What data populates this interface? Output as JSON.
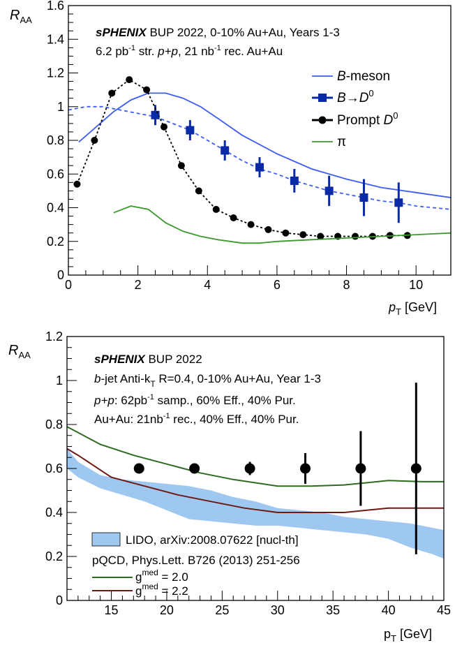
{
  "chart_data": [
    {
      "type": "line",
      "xlabel": "p_T [GeV]",
      "ylabel": "R_AA",
      "xlim": [
        0,
        11
      ],
      "ylim": [
        0,
        1.6
      ],
      "xticks": [
        0,
        2,
        4,
        6,
        8,
        10
      ],
      "yticks": [
        0,
        0.2,
        0.4,
        0.6,
        0.8,
        1,
        1.2,
        1.4,
        1.6
      ],
      "annotations": [
        "sPHENIX BUP 2022, 0-10% Au+Au, Years 1-3",
        "6.2 pb⁻¹ str. p+p, 21 nb⁻¹ rec. Au+Au"
      ],
      "legend_position": "top-right",
      "series": [
        {
          "name": "B-meson",
          "kind": "line",
          "color": "#3d5cf5",
          "x": [
            0.3,
            0.8,
            1.3,
            1.8,
            2.3,
            2.8,
            3.3,
            3.8,
            4.3,
            5,
            6,
            7,
            8,
            9,
            10,
            11
          ],
          "y": [
            0.79,
            0.88,
            0.97,
            1.04,
            1.08,
            1.08,
            1.05,
            1.0,
            0.93,
            0.83,
            0.72,
            0.63,
            0.57,
            0.52,
            0.49,
            0.46
          ]
        },
        {
          "name": "B→D⁰ (dashed)",
          "kind": "line",
          "color": "#3d5cf5",
          "x": [
            0,
            0.5,
            1,
            1.5,
            2,
            2.5,
            3,
            3.5,
            4,
            4.5,
            5,
            5.5,
            6,
            6.5,
            7,
            7.5,
            8,
            8.5,
            9,
            9.5,
            10,
            10.5,
            11
          ],
          "y": [
            0.98,
            1.0,
            1.0,
            0.98,
            0.96,
            0.94,
            0.9,
            0.86,
            0.8,
            0.74,
            0.68,
            0.63,
            0.6,
            0.56,
            0.53,
            0.5,
            0.48,
            0.46,
            0.44,
            0.43,
            0.41,
            0.4,
            0.39
          ]
        },
        {
          "name": "B→D⁰",
          "kind": "points",
          "color": "#0b2aa8",
          "x": [
            2.5,
            3.5,
            4.5,
            5.5,
            6.5,
            7.5,
            8.5,
            9.5
          ],
          "y": [
            0.95,
            0.86,
            0.74,
            0.64,
            0.56,
            0.5,
            0.46,
            0.43
          ],
          "err": [
            0.06,
            0.06,
            0.06,
            0.06,
            0.07,
            0.09,
            0.11,
            0.12
          ]
        },
        {
          "name": "Prompt D⁰",
          "kind": "points_dashed",
          "color": "#000000",
          "x": [
            0.25,
            0.75,
            1.25,
            1.75,
            2.25,
            2.75,
            3.25,
            3.75,
            4.25,
            4.75,
            5.25,
            5.75,
            6.25,
            6.75,
            7.25,
            7.75,
            8.25,
            8.75,
            9.25,
            9.75
          ],
          "y": [
            0.54,
            0.8,
            1.08,
            1.16,
            1.1,
            0.88,
            0.65,
            0.5,
            0.39,
            0.34,
            0.3,
            0.27,
            0.25,
            0.24,
            0.23,
            0.23,
            0.23,
            0.23,
            0.235,
            0.235
          ]
        },
        {
          "name": "π",
          "kind": "line",
          "color": "#3b9a2c",
          "x": [
            1.3,
            1.8,
            2.3,
            2.8,
            3.3,
            3.8,
            4.3,
            5,
            5.5,
            6,
            7,
            8,
            9,
            10,
            11
          ],
          "y": [
            0.37,
            0.41,
            0.39,
            0.31,
            0.26,
            0.23,
            0.21,
            0.19,
            0.19,
            0.2,
            0.21,
            0.22,
            0.23,
            0.24,
            0.25
          ]
        }
      ],
      "legend": [
        {
          "label": "B-meson",
          "style": "line",
          "color": "#3d5cf5"
        },
        {
          "label": "B→D⁰",
          "style": "square",
          "color": "#0b2aa8"
        },
        {
          "label": "Prompt D⁰",
          "style": "circle",
          "color": "#000000"
        },
        {
          "label": "π",
          "style": "line",
          "color": "#3b9a2c"
        }
      ]
    },
    {
      "type": "scatter",
      "xlabel": "p_T [GeV]",
      "ylabel": "R_AA",
      "xlim": [
        11,
        45
      ],
      "ylim": [
        0,
        1.2
      ],
      "xticks": [
        15,
        20,
        25,
        30,
        35,
        40,
        45
      ],
      "yticks": [
        0,
        0.2,
        0.4,
        0.6,
        0.8,
        1,
        1.2
      ],
      "annotations": [
        "sPHENIX BUP 2022",
        "b-jet Anti-k_T R=0.4, 0-10% Au+Au, Year 1-3",
        "p+p: 62pb⁻¹ samp., 60% Eff., 40% Pur.",
        "Au+Au: 21nb⁻¹ rec., 40% Eff., 40% Pur."
      ],
      "legend_position": "bottom-left",
      "points": {
        "x": [
          17.5,
          22.5,
          27.5,
          32.5,
          37.5,
          42.5
        ],
        "y": [
          0.6,
          0.6,
          0.6,
          0.6,
          0.6,
          0.6
        ],
        "err": [
          0.0,
          0.0,
          0.03,
          0.07,
          0.17,
          0.39
        ],
        "color": "#000000"
      },
      "band": {
        "name": "LIDO, arXiv:2008.07622 [nucl-th]",
        "color": "#9fc8f0",
        "x": [
          11,
          12,
          14,
          16,
          18,
          20,
          22,
          24,
          26,
          28,
          30,
          32,
          34,
          36,
          38,
          40,
          42,
          44,
          45
        ],
        "upper": [
          0.69,
          0.63,
          0.57,
          0.55,
          0.54,
          0.53,
          0.52,
          0.5,
          0.47,
          0.45,
          0.42,
          0.41,
          0.4,
          0.38,
          0.37,
          0.36,
          0.35,
          0.33,
          0.32
        ],
        "lower": [
          0.6,
          0.56,
          0.51,
          0.48,
          0.45,
          0.41,
          0.37,
          0.36,
          0.35,
          0.34,
          0.34,
          0.33,
          0.32,
          0.31,
          0.3,
          0.28,
          0.24,
          0.21,
          0.19
        ]
      },
      "lines": [
        {
          "name": "gmed = 2.0",
          "color": "#2f6b1e",
          "x": [
            11,
            14,
            17,
            20,
            23,
            26,
            28,
            30,
            33,
            36,
            38,
            40,
            43,
            45
          ],
          "y": [
            0.79,
            0.71,
            0.66,
            0.62,
            0.58,
            0.55,
            0.535,
            0.52,
            0.52,
            0.525,
            0.535,
            0.545,
            0.54,
            0.54
          ]
        },
        {
          "name": "gmed = 2.2",
          "color": "#6b1a14",
          "x": [
            11,
            12,
            15,
            18,
            21,
            24,
            27,
            30,
            33,
            36,
            38,
            40,
            43,
            45
          ],
          "y": [
            0.69,
            0.66,
            0.56,
            0.52,
            0.48,
            0.45,
            0.42,
            0.4,
            0.4,
            0.4,
            0.41,
            0.42,
            0.42,
            0.42
          ]
        }
      ],
      "legend": [
        {
          "label": "LIDO, arXiv:2008.07622 [nucl-th]",
          "style": "box",
          "color": "#9fc8f0"
        },
        {
          "label": "pQCD, Phys.Lett. B726 (2013) 251-256",
          "style": "text"
        },
        {
          "label": "g",
          "sup": "med",
          "rest": " = 2.0",
          "style": "line",
          "color": "#2f6b1e"
        },
        {
          "label": "g",
          "sup": "med",
          "rest": " = 2.2",
          "style": "line",
          "color": "#6b1a14"
        }
      ]
    }
  ]
}
